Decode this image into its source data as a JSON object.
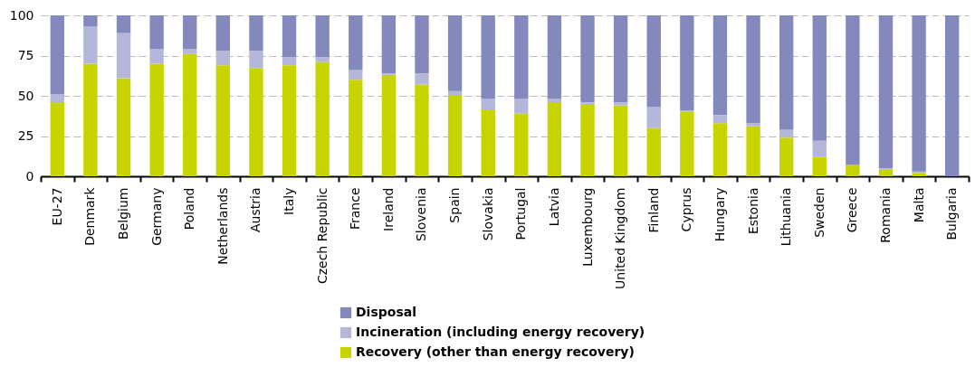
{
  "chart_data": {
    "type": "bar",
    "stacked": true,
    "categories": [
      "EU-27",
      "Denmark",
      "Belgium",
      "Germany",
      "Poland",
      "Netherlands",
      "Austria",
      "Italy",
      "Czech Republic",
      "France",
      "Ireland",
      "Slovenia",
      "Spain",
      "Slovakia",
      "Portugal",
      "Latvia",
      "Luxembourg",
      "United Kingdom",
      "Finland",
      "Cyprus",
      "Hungary",
      "Estonia",
      "Lithuania",
      "Sweden",
      "Greece",
      "Romania",
      "Malta",
      "Bulgaria"
    ],
    "series": [
      {
        "name": "Recovery (other than energy recovery)",
        "color": "#c8d400",
        "values": [
          46,
          70,
          61,
          70,
          76,
          69,
          67,
          69,
          71,
          60,
          63,
          57,
          50,
          41,
          39,
          46,
          45,
          44,
          30,
          40,
          33,
          31,
          24,
          12,
          7,
          4,
          2,
          0
        ]
      },
      {
        "name": "Incineration (including energy recovery)",
        "color": "#b4b7d9",
        "values": [
          5,
          23,
          28,
          9,
          3,
          9,
          11,
          5,
          3,
          6,
          1,
          7,
          3,
          7,
          9,
          2,
          1,
          2,
          13,
          1,
          5,
          2,
          5,
          10,
          0,
          1,
          1,
          0
        ]
      },
      {
        "name": "Disposal",
        "color": "#8489bd",
        "values": [
          49,
          7,
          11,
          21,
          21,
          22,
          22,
          26,
          26,
          34,
          36,
          36,
          47,
          52,
          52,
          52,
          54,
          54,
          57,
          59,
          62,
          67,
          71,
          78,
          93,
          95,
          97,
          100
        ]
      }
    ],
    "ylim": [
      0,
      100
    ],
    "yticks": [
      0,
      25,
      50,
      75,
      100
    ],
    "grid": "y",
    "legend": "bottom"
  }
}
